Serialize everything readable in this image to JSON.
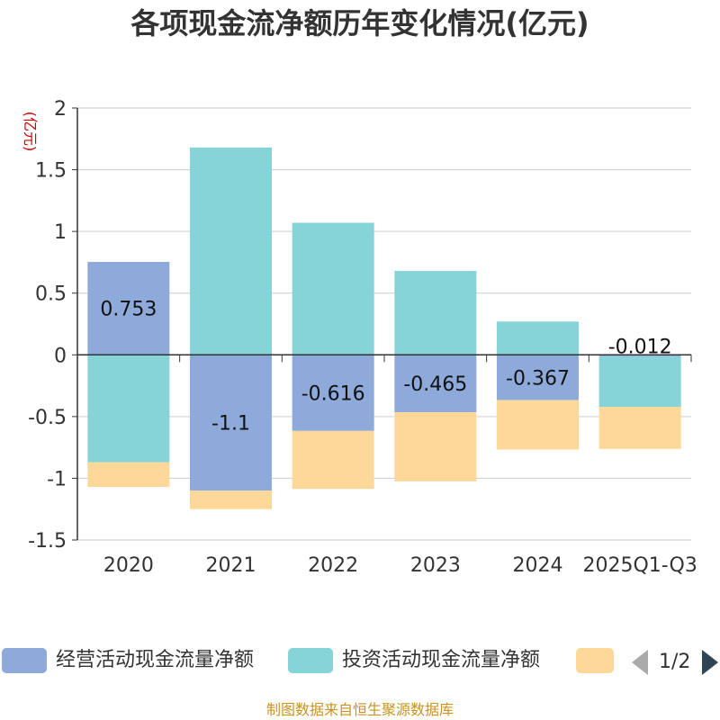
{
  "chart_data": {
    "type": "bar",
    "stacked": true,
    "title": "各项现金流净额历年变化情况(亿元)",
    "ylabel": "(亿元)",
    "xlabel": "",
    "ylim": [
      -1.5,
      2
    ],
    "yticks": [
      2,
      1.5,
      1,
      0.5,
      0,
      -0.5,
      -1,
      -1.5
    ],
    "ytick_labels": [
      "2",
      "1.5",
      "1",
      "0.5",
      "0",
      "-0.5",
      "-1",
      "-1.5"
    ],
    "grid": true,
    "legend_position": "bottom",
    "categories": [
      "2020",
      "2021",
      "2022",
      "2023",
      "2024",
      "2025Q1-Q3"
    ],
    "series": [
      {
        "name": "经营活动现金流量净额",
        "color": "#8eaadb",
        "values": [
          0.753,
          -1.1,
          -0.616,
          -0.465,
          -0.367,
          -0.012
        ],
        "labels": [
          "0.753",
          "-1.1",
          "-0.616",
          "-0.465",
          "-0.367",
          "-0.012"
        ]
      },
      {
        "name": "投资活动现金流量净额",
        "color": "#86d4d8",
        "values": [
          -0.87,
          1.68,
          1.07,
          0.68,
          0.27,
          -0.41
        ]
      },
      {
        "name": "",
        "color": "#fed898",
        "values": [
          -0.2,
          -0.15,
          -0.47,
          -0.56,
          -0.4,
          -0.34
        ]
      }
    ]
  },
  "legend": {
    "items": [
      {
        "label": "经营活动现金流量净额",
        "color": "#8eaadb"
      },
      {
        "label": "投资活动现金流量净额",
        "color": "#86d4d8"
      },
      {
        "label": "",
        "color": "#fed898"
      }
    ],
    "page_text": "1/2"
  },
  "source_text": "制图数据来自恒生聚源数据库"
}
